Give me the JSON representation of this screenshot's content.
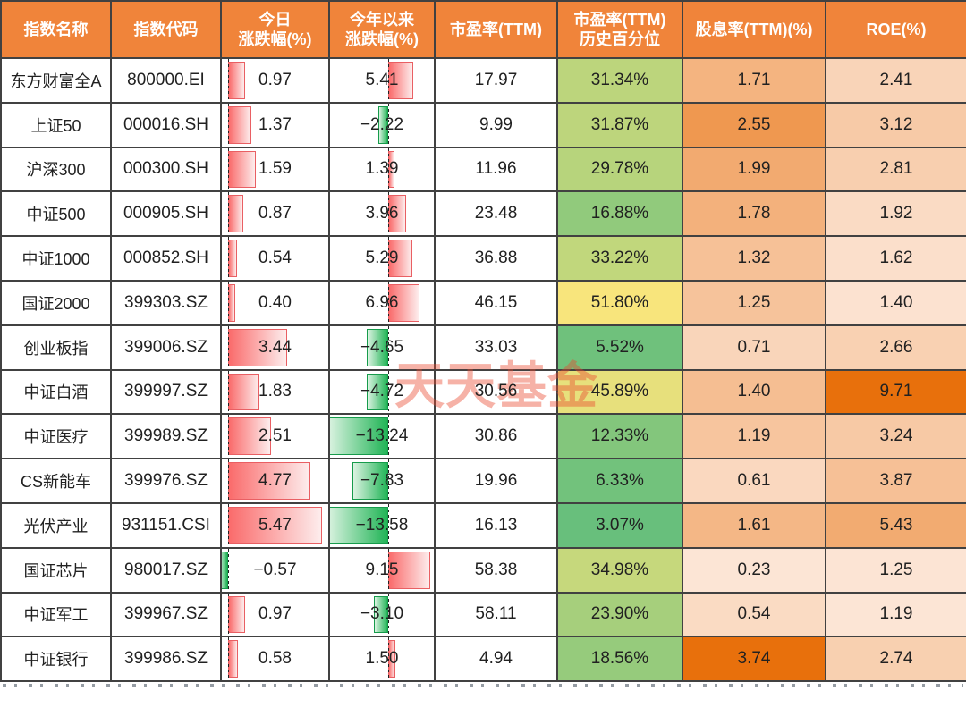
{
  "watermark": "天天基金",
  "colors": {
    "header_bg": "#F0843A",
    "bar_positive": "#FA6B6B",
    "bar_positive_border": "#E95F63",
    "bar_negative": "#21B456",
    "bar_negative_border": "#169B4B",
    "pct_scale_min_green": "#68BF7C",
    "pct_scale_max_yellow": "#F8E57C",
    "orange_scale_min": "#FCE5D5",
    "orange_scale_max": "#E8700C"
  },
  "chart_data": {
    "type": "table",
    "title": "",
    "legend_position": "none",
    "grid": true,
    "columns": [
      {
        "key": "name",
        "label": "指数名称"
      },
      {
        "key": "code",
        "label": "指数代码"
      },
      {
        "key": "today",
        "label": "今日\n涨跌幅(%)"
      },
      {
        "key": "ytd",
        "label": "今年以来\n涨跌幅(%)"
      },
      {
        "key": "pe",
        "label": "市盈率(TTM)"
      },
      {
        "key": "pe_pct",
        "label": "市盈率(TTM)\n历史百分位"
      },
      {
        "key": "dividend",
        "label": "股息率(TTM)(%)"
      },
      {
        "key": "roe",
        "label": "ROE(%)"
      }
    ],
    "rows": [
      {
        "name": "东方财富全A",
        "code": "800000.EI",
        "today": 0.97,
        "ytd": 5.41,
        "pe": 17.97,
        "pe_pct": 31.34,
        "dividend": 1.71,
        "roe": 2.41
      },
      {
        "name": "上证50",
        "code": "000016.SH",
        "today": 1.37,
        "ytd": -2.22,
        "pe": 9.99,
        "pe_pct": 31.87,
        "dividend": 2.55,
        "roe": 3.12
      },
      {
        "name": "沪深300",
        "code": "000300.SH",
        "today": 1.59,
        "ytd": 1.39,
        "pe": 11.96,
        "pe_pct": 29.78,
        "dividend": 1.99,
        "roe": 2.81
      },
      {
        "name": "中证500",
        "code": "000905.SH",
        "today": 0.87,
        "ytd": 3.96,
        "pe": 23.48,
        "pe_pct": 16.88,
        "dividend": 1.78,
        "roe": 1.92
      },
      {
        "name": "中证1000",
        "code": "000852.SH",
        "today": 0.54,
        "ytd": 5.29,
        "pe": 36.88,
        "pe_pct": 33.22,
        "dividend": 1.32,
        "roe": 1.62
      },
      {
        "name": "国证2000",
        "code": "399303.SZ",
        "today": 0.4,
        "ytd": 6.96,
        "pe": 46.15,
        "pe_pct": 51.8,
        "dividend": 1.25,
        "roe": 1.4
      },
      {
        "name": "创业板指",
        "code": "399006.SZ",
        "today": 3.44,
        "ytd": -4.65,
        "pe": 33.03,
        "pe_pct": 5.52,
        "dividend": 0.71,
        "roe": 2.66
      },
      {
        "name": "中证白酒",
        "code": "399997.SZ",
        "today": 1.83,
        "ytd": -4.72,
        "pe": 30.56,
        "pe_pct": 45.89,
        "dividend": 1.4,
        "roe": 9.71
      },
      {
        "name": "中证医疗",
        "code": "399989.SZ",
        "today": 2.51,
        "ytd": -13.24,
        "pe": 30.86,
        "pe_pct": 12.33,
        "dividend": 1.19,
        "roe": 3.24
      },
      {
        "name": "CS新能车",
        "code": "399976.SZ",
        "today": 4.77,
        "ytd": -7.83,
        "pe": 19.96,
        "pe_pct": 6.33,
        "dividend": 0.61,
        "roe": 3.87
      },
      {
        "name": "光伏产业",
        "code": "931151.CSI",
        "today": 5.47,
        "ytd": -13.58,
        "pe": 16.13,
        "pe_pct": 3.07,
        "dividend": 1.61,
        "roe": 5.43
      },
      {
        "name": "国证芯片",
        "code": "980017.SZ",
        "today": -0.57,
        "ytd": 9.15,
        "pe": 58.38,
        "pe_pct": 34.98,
        "dividend": 0.23,
        "roe": 1.25
      },
      {
        "name": "中证军工",
        "code": "399967.SZ",
        "today": 0.97,
        "ytd": -3.1,
        "pe": 58.11,
        "pe_pct": 23.9,
        "dividend": 0.54,
        "roe": 1.19
      },
      {
        "name": "中证银行",
        "code": "399986.SZ",
        "today": 0.58,
        "ytd": 1.5,
        "pe": 4.94,
        "pe_pct": 18.56,
        "dividend": 3.74,
        "roe": 2.74
      }
    ],
    "conditional_formatting": {
      "today": "data bars from dotted axis: red gradient = positive, green gradient = negative",
      "ytd": "data bars from dotted axis: red gradient = positive, green gradient = negative",
      "pe_pct": "color scale green (min) to yellow (max), shown with % suffix",
      "dividend": "color scale light peach (min) to dark orange (max)",
      "roe": "color scale light peach (min) to dark orange (max)"
    }
  }
}
